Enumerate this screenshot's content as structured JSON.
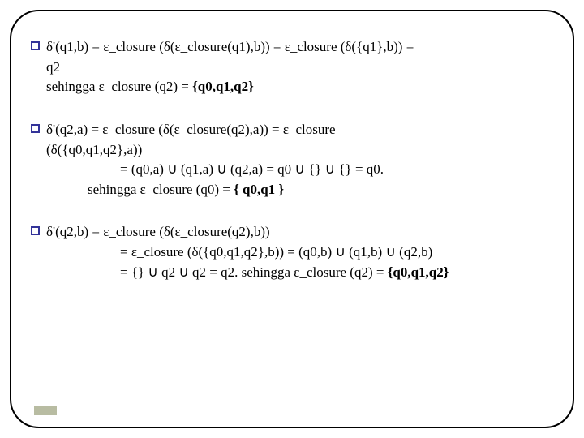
{
  "colors": {
    "border": "#000000",
    "bullet_border": "#333399",
    "text": "#000000",
    "corner": "#9aa07a"
  },
  "blocks": [
    {
      "lines": [
        {
          "cls": "bullet-row",
          "text": "δ'(q1,b)  = ε_closure (δ(ε_closure(q1),b)) = ε_closure (δ({q1},b)) ="
        },
        {
          "cls": "indent1",
          "text": "q2"
        },
        {
          "cls": "indent1",
          "html": "sehingga ε_closure (q2)  = <span class=\"bold\">{q0,q1,q2}</span>"
        }
      ]
    },
    {
      "lines": [
        {
          "cls": "bullet-row",
          "text": "δ'(q2,a)  = ε_closure (δ(ε_closure(q2),a)) = ε_closure"
        },
        {
          "cls": "indent1",
          "text": "(δ({q0,q1,q2},a))"
        },
        {
          "cls": "indent2",
          "text": "= (q0,a) ∪ (q1,a) ∪ (q2,a) = q0 ∪ {} ∪ {} = q0."
        },
        {
          "cls": "indent3",
          "html": "sehingga ε_closure (q0) = <span class=\"bold\">{ q0,q1 }</span>"
        }
      ]
    },
    {
      "lines": [
        {
          "cls": "bullet-row",
          "text": "δ'(q2,b)  = ε_closure (δ(ε_closure(q2),b))"
        },
        {
          "cls": "indent2",
          "text": "= ε_closure (δ({q0,q1,q2},b))  = (q0,b) ∪ (q1,b) ∪ (q2,b)"
        },
        {
          "cls": "indent2",
          "html": "= {} ∪ q2 ∪ q2 = q2. sehingga ε_closure (q2) = <span class=\"bold\">{q0,q1,q2}</span>"
        }
      ]
    }
  ]
}
